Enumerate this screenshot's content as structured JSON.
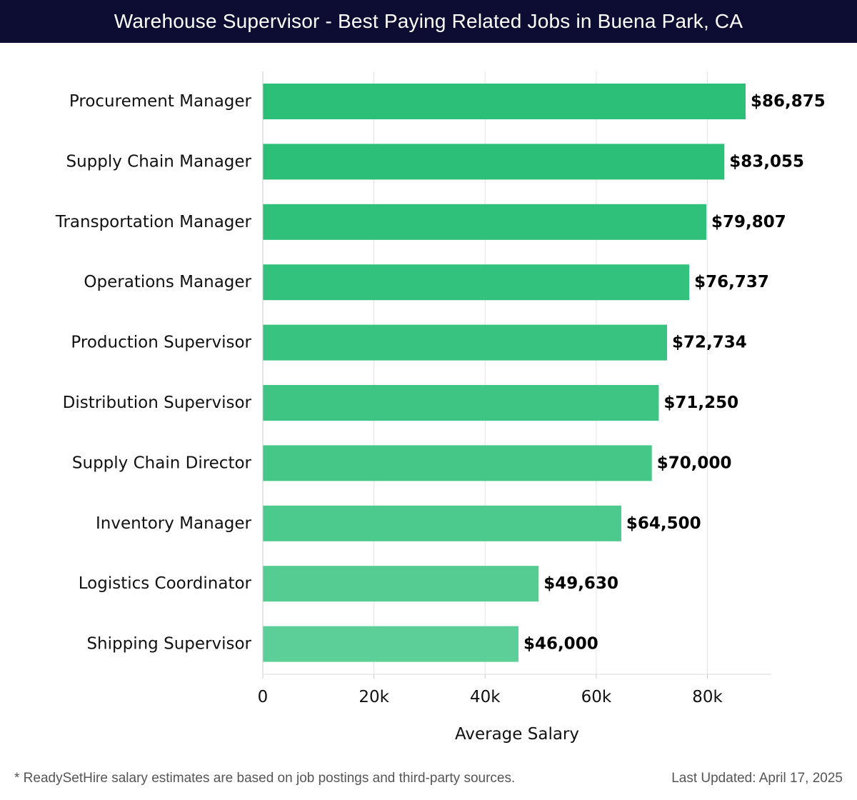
{
  "header": {
    "title": "Warehouse Supervisor - Best Paying Related Jobs in Buena Park, CA"
  },
  "footer": {
    "note": "* ReadySetHire salary estimates are based on job postings and third-party sources.",
    "updated": "Last Updated: April 17, 2025"
  },
  "colors": {
    "header_bg": "#0d0d33",
    "bar_top": "#2bbf77",
    "bar_bottom": "#5ccf98"
  },
  "chart_data": {
    "type": "bar",
    "orientation": "horizontal",
    "categories": [
      "Procurement Manager",
      "Supply Chain Manager",
      "Transportation Manager",
      "Operations Manager",
      "Production Supervisor",
      "Distribution Supervisor",
      "Supply Chain Director",
      "Inventory Manager",
      "Logistics Coordinator",
      "Shipping Supervisor"
    ],
    "values": [
      86875,
      83055,
      79807,
      76737,
      72734,
      71250,
      70000,
      64500,
      49630,
      46000
    ],
    "data_labels": [
      "$86,875",
      "$83,055",
      "$79,807",
      "$76,737",
      "$72,734",
      "$71,250",
      "$70,000",
      "$64,500",
      "$49,630",
      "$46,000"
    ],
    "xlabel": "Average Salary",
    "ylabel": "",
    "xlim": [
      0,
      91500
    ],
    "xticks": [
      0,
      20000,
      40000,
      60000,
      80000
    ],
    "xtick_labels": [
      "0",
      "20k",
      "40k",
      "60k",
      "80k"
    ],
    "grid": true
  }
}
